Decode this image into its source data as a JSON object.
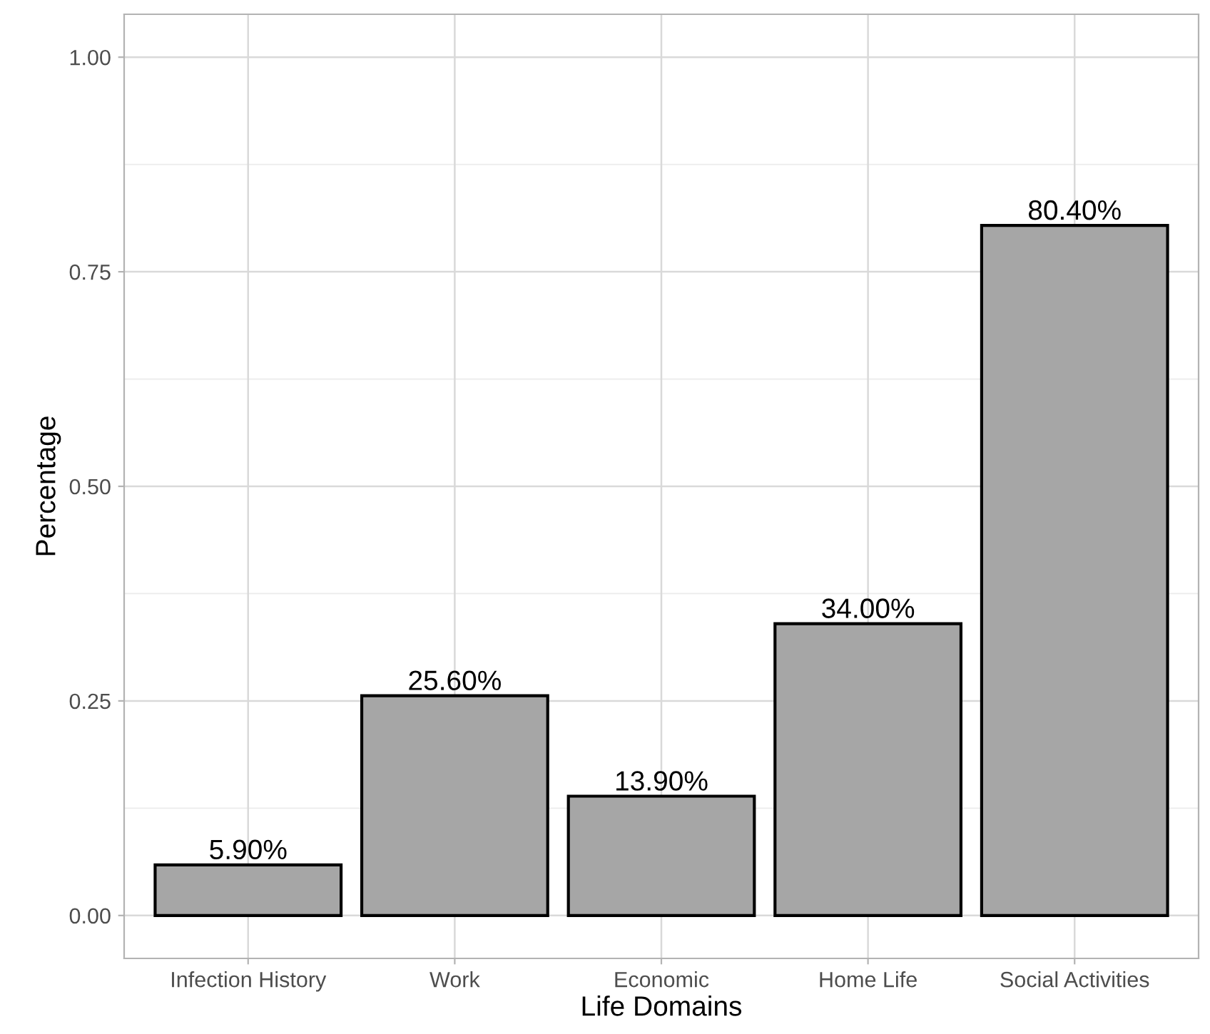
{
  "chart_data": {
    "type": "bar",
    "xlabel": "Life Domains",
    "ylabel": "Percentage",
    "categories": [
      "Infection History",
      "Work",
      "Economic",
      "Home Life",
      "Social Activities"
    ],
    "values": [
      0.059,
      0.256,
      0.139,
      0.34,
      0.804
    ],
    "value_labels": [
      "5.90%",
      "25.60%",
      "13.90%",
      "34.00%",
      "80.40%"
    ],
    "color": "#a6a6a6",
    "ylim": [
      -0.05,
      1.05
    ],
    "yticks": [
      {
        "value": 0,
        "label": "0.00"
      },
      {
        "value": 0.25,
        "label": "0.25"
      },
      {
        "value": 0.5,
        "label": "0.50"
      },
      {
        "value": 0.75,
        "label": "0.75"
      },
      {
        "value": 1,
        "label": "1.00"
      }
    ],
    "grid": true
  }
}
